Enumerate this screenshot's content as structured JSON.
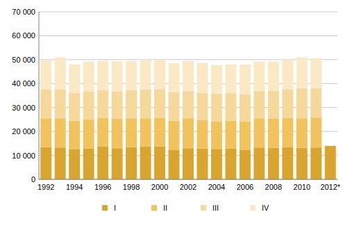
{
  "chart_data": {
    "type": "bar",
    "stacked": true,
    "grid": true,
    "legend": "bottom",
    "categories": [
      "1992",
      null,
      "1994",
      null,
      "1996",
      null,
      "1998",
      null,
      "2000",
      null,
      "2002",
      null,
      "2004",
      null,
      "2006",
      null,
      "2008",
      null,
      "2010",
      null,
      "2012*"
    ],
    "series": [
      {
        "name": "I",
        "color": "#d9a52e",
        "values": [
          13500,
          13300,
          12500,
          12800,
          13800,
          13000,
          13500,
          13800,
          13800,
          12200,
          13000,
          12800,
          12700,
          12800,
          12200,
          13300,
          13200,
          13500,
          13200,
          13300,
          14000
        ]
      },
      {
        "name": "II",
        "color": "#f2c35c",
        "values": [
          12000,
          12200,
          12000,
          12200,
          11900,
          12300,
          12000,
          11700,
          11900,
          12300,
          12500,
          12000,
          11600,
          11700,
          12000,
          12200,
          12100,
          12200,
          12300,
          12500,
          null
        ]
      },
      {
        "name": "III",
        "color": "#f6d89a",
        "values": [
          12000,
          12000,
          11700,
          11800,
          11500,
          11500,
          11700,
          12000,
          12000,
          12000,
          11500,
          11400,
          11500,
          11500,
          11300,
          11500,
          11700,
          11800,
          12500,
          12200,
          null
        ]
      },
      {
        "name": "IV",
        "color": "#fbe9c6",
        "values": [
          12300,
          13500,
          11800,
          12400,
          12300,
          12500,
          12200,
          12300,
          12300,
          12100,
          12400,
          12500,
          11900,
          12000,
          12500,
          12200,
          12200,
          12300,
          13000,
          12600,
          null
        ]
      }
    ],
    "ylim": [
      0,
      70000
    ],
    "yticks": [
      0,
      {
        "value": 10000,
        "label": "10 000"
      },
      {
        "value": 20000,
        "label": "20 000"
      },
      {
        "value": 30000,
        "label": "30 000"
      },
      {
        "value": 40000,
        "label": "40 000"
      },
      {
        "value": 50000,
        "label": "50 000"
      },
      {
        "value": 60000,
        "label": "60 000"
      },
      {
        "value": 70000,
        "label": "70 000"
      }
    ]
  }
}
